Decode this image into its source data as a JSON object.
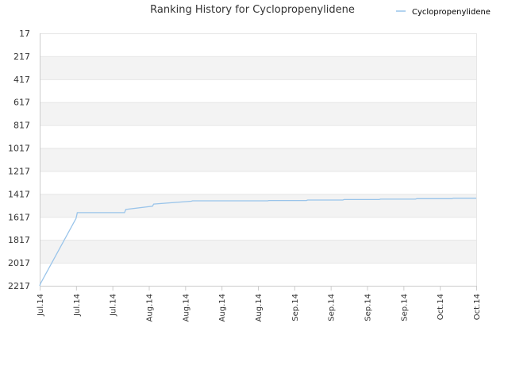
{
  "chart_data": {
    "type": "line",
    "title": "Ranking History for Cyclopropenylidene",
    "xlabel": "",
    "ylabel": "",
    "y_axis_inverted": true,
    "ylim": [
      17,
      2217
    ],
    "y_ticks": [
      "17",
      "217",
      "417",
      "617",
      "817",
      "1017",
      "1217",
      "1417",
      "1617",
      "1817",
      "2017",
      "2217"
    ],
    "x_ticks": [
      "Jul.14",
      "Jul.14",
      "Jul.14",
      "Aug.14",
      "Aug.14",
      "Aug.14",
      "Aug.14",
      "Sep.14",
      "Sep.14",
      "Sep.14",
      "Sep.14",
      "Oct.14",
      "Oct.14"
    ],
    "legend": {
      "position": "top-right"
    },
    "grid": true,
    "band_color": "#f3f3f3",
    "series": [
      {
        "name": "Cyclopropenylidene",
        "color": "#99c4ea",
        "points": [
          [
            0.0,
            2217
          ],
          [
            0.06,
            2200
          ],
          [
            3.0,
            1630
          ],
          [
            3.1,
            1580
          ],
          [
            7.0,
            1580
          ],
          [
            7.1,
            1552
          ],
          [
            9.3,
            1524
          ],
          [
            9.4,
            1505
          ],
          [
            12.5,
            1480
          ],
          [
            12.6,
            1477
          ],
          [
            17.5,
            1477
          ],
          [
            18.8,
            1477
          ],
          [
            18.9,
            1474
          ],
          [
            22.0,
            1474
          ],
          [
            22.1,
            1470
          ],
          [
            25.0,
            1470
          ],
          [
            25.1,
            1466
          ],
          [
            28.0,
            1466
          ],
          [
            28.1,
            1462
          ],
          [
            31.0,
            1462
          ],
          [
            31.1,
            1458
          ],
          [
            34.0,
            1458
          ],
          [
            34.1,
            1454
          ],
          [
            36.0,
            1454
          ]
        ]
      }
    ]
  }
}
